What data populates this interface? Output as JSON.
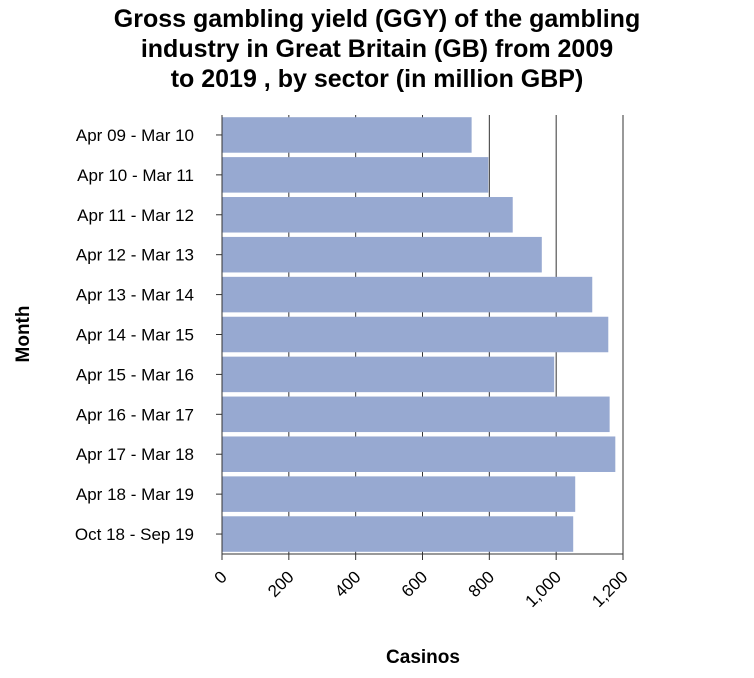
{
  "chart_data": {
    "type": "bar",
    "orientation": "horizontal",
    "title": "Gross gambling yield (GGY) of the gambling\nindustry in Great Britain (GB) from 2009\nto 2019 , by sector (in million GBP)",
    "xlabel": "Casinos",
    "ylabel": "Month",
    "xlim": [
      0,
      1200
    ],
    "xticks": [
      "0",
      "200",
      "400",
      "600",
      "800",
      "1,000",
      "1,200"
    ],
    "categories": [
      "Apr 09 - Mar 10",
      "Apr 10 - Mar 11",
      "Apr 11 - Mar 12",
      "Apr 12 - Mar 13",
      "Apr 13 - Mar 14",
      "Apr 14 - Mar 15",
      "Apr 15 - Mar 16",
      "Apr 16 - Mar 17",
      "Apr 17 - Mar 18",
      "Apr 18 - Mar 19",
      "Oct 18 - Sep 19"
    ],
    "values": [
      747,
      797,
      870,
      957,
      1108,
      1156,
      994,
      1160,
      1177,
      1057,
      1051
    ],
    "bar_color": "#97a9d1",
    "grid": "vertical"
  }
}
